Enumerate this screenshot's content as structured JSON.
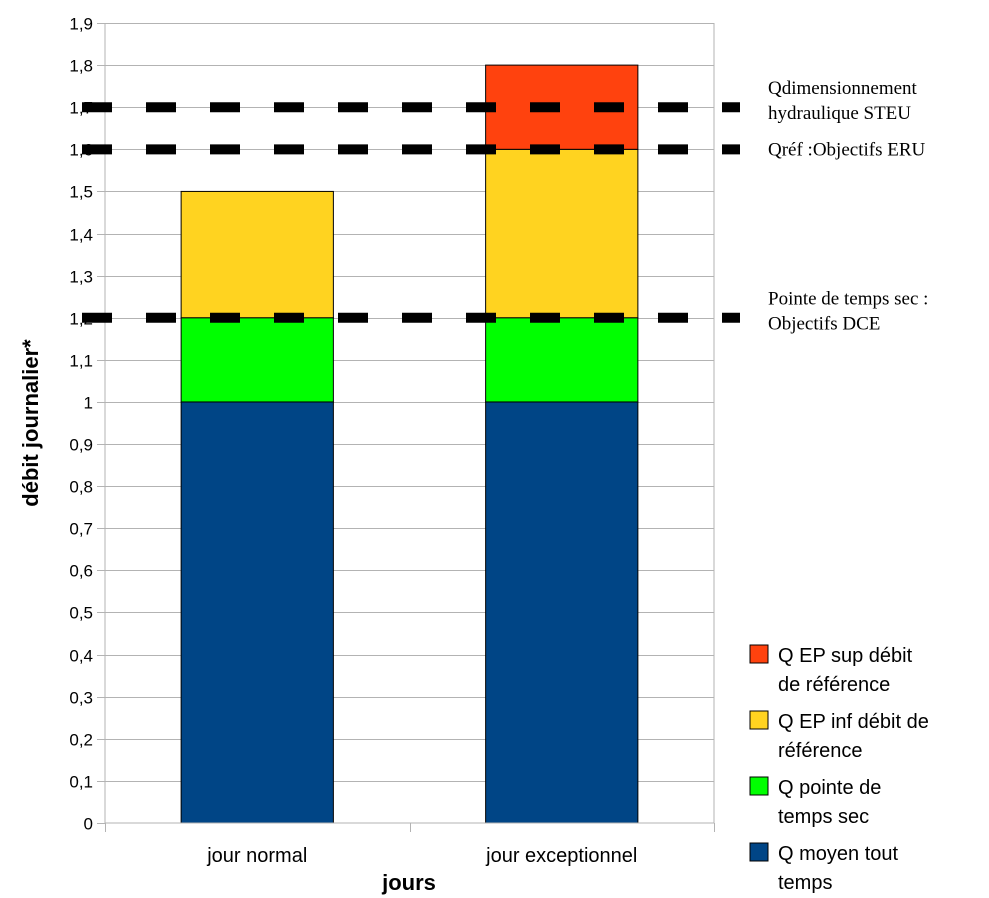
{
  "chart_data": {
    "type": "bar",
    "stacked": true,
    "title": "",
    "xlabel": "jours",
    "ylabel": "débit journalier*",
    "ylim": [
      0,
      1.9
    ],
    "ytick_step": 0.1,
    "yticks": [
      "0",
      "0,1",
      "0,2",
      "0,3",
      "0,4",
      "0,5",
      "0,6",
      "0,7",
      "0,8",
      "0,9",
      "1",
      "1,1",
      "1,2",
      "1,3",
      "1,4",
      "1,5",
      "1,6",
      "1,7",
      "1,8",
      "1,9"
    ],
    "grid": true,
    "categories": [
      "jour normal",
      "jour exceptionnel"
    ],
    "series": [
      {
        "name": "Q moyen tout temps",
        "values": [
          1.0,
          1.0
        ],
        "color": "#004586"
      },
      {
        "name": "Q pointe de temps sec",
        "values": [
          0.2,
          0.2
        ],
        "color": "#00ff00"
      },
      {
        "name": "Q EP inf débit de référence",
        "values": [
          0.3,
          0.4
        ],
        "color": "#ffd320"
      },
      {
        "name": "Q EP sup débit de référence",
        "values": [
          0.0,
          0.2
        ],
        "color": "#ff420e"
      }
    ],
    "legend": {
      "position": "bottom-right",
      "items": [
        {
          "series": 3,
          "lines": [
            "Q EP sup débit",
            "de référence"
          ]
        },
        {
          "series": 2,
          "lines": [
            "Q EP inf débit de",
            "référence"
          ]
        },
        {
          "series": 1,
          "lines": [
            "Q pointe de",
            "temps sec"
          ]
        },
        {
          "series": 0,
          "lines": [
            "Q moyen tout",
            "temps"
          ]
        }
      ]
    },
    "reference_lines": [
      {
        "y": 1.7,
        "label_lines": [
          "Qdimensionnement",
          "hydraulique STEU"
        ]
      },
      {
        "y": 1.6,
        "label_lines": [
          "Qréf :Objectifs ERU"
        ]
      },
      {
        "y": 1.2,
        "label_lines": [
          "Pointe  de temps sec :",
          "Objectifs DCE"
        ]
      }
    ]
  }
}
